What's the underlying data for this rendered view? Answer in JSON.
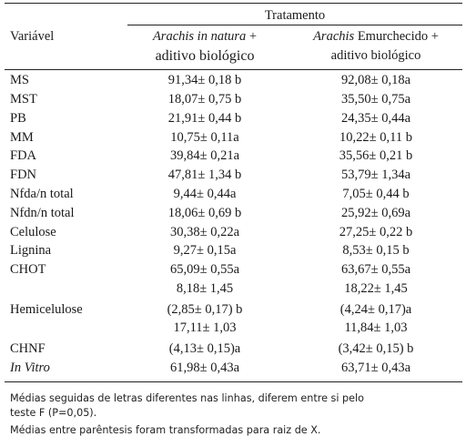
{
  "header": {
    "group": "Tratamento",
    "variable": "Variável",
    "col1_a": "Arachis in natura",
    "col1_a_suffix": " +",
    "col1_b": "aditivo biológico",
    "col2_a": "Arachis",
    "col2_a_suffix": " Emurchecido +",
    "col2_b": "aditivo biológico"
  },
  "rows": [
    {
      "label": "MS",
      "c1": "91,34± 0,18 b",
      "c2": "92,08± 0,18a"
    },
    {
      "label": "MST",
      "c1": "18,07± 0,75 b",
      "c2": "35,50± 0,75a"
    },
    {
      "label": "PB",
      "c1": "21,91± 0,44 b",
      "c2": "24,35± 0,44a"
    },
    {
      "label": "MM",
      "c1": "10,75± 0,11a",
      "c2": "10,22± 0,11 b"
    },
    {
      "label": "FDA",
      "c1": "39,84± 0,21a",
      "c2": "35,56± 0,21 b"
    },
    {
      "label": "FDN",
      "c1": "47,81± 1,34 b",
      "c2": "53,79± 1,34a"
    },
    {
      "label": "Nfda/n total",
      "c1": "9,44± 0,44a",
      "c2": "7,05± 0,44 b"
    },
    {
      "label": "Nfdn/n total",
      "c1": "18,06± 0,69 b",
      "c2": "25,92± 0,69a"
    },
    {
      "label": "Celulose",
      "c1": "30,38± 0,22a",
      "c2": "27,25± 0,22 b"
    },
    {
      "label": "Lignina",
      "c1": "9,27± 0,15a",
      "c2": "8,53± 0,15 b"
    },
    {
      "label": "CHOT",
      "c1": "65,09± 0,55a",
      "c2": "63,67± 0,55a"
    },
    {
      "label": "",
      "c1": "8,18± 1,45",
      "c2": "18,22± 1,45"
    },
    {
      "label": "Hemicelulose",
      "c1": "(2,85± 0,17) b",
      "c2": "(4,24± 0,17)a"
    },
    {
      "label": "",
      "c1": "17,11± 1,03",
      "c2": "11,84± 1,03"
    },
    {
      "label": "CHNF",
      "c1": "(4,13± 0,15)a",
      "c2": "(3,42± 0,15) b"
    },
    {
      "label": "In Vitro",
      "c1": "61,98± 0,43a",
      "c2": "63,71± 0,43a"
    }
  ],
  "footnotes": [
    "Médias seguidas de letras diferentes nas linhas, diferem entre si pelo",
    "teste F (P=0,05).",
    "Médias entre parêntesis foram transformadas para raiz de X."
  ]
}
